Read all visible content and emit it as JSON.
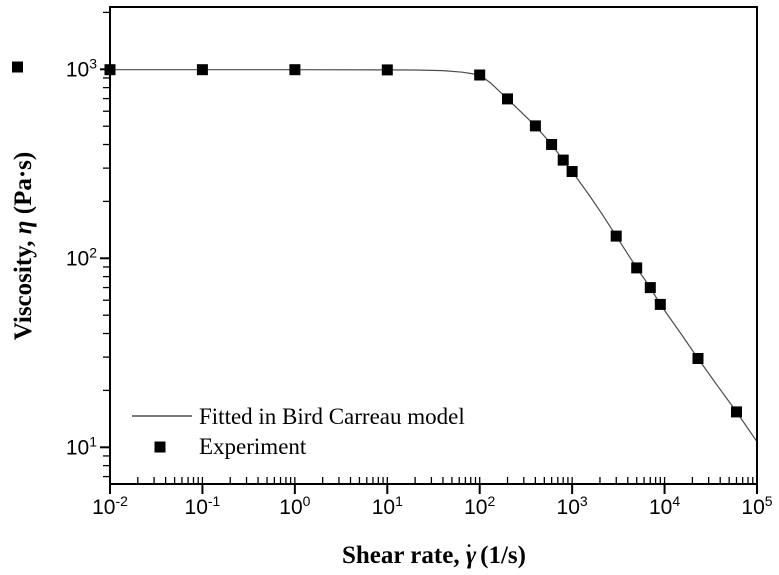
{
  "chart_data": {
    "type": "line",
    "title": "",
    "xlabel": "Shear rate, γ̇ (1/s)",
    "ylabel": "Viscosity, η (Pa·s)",
    "xlabel_parts": [
      {
        "text": "Shear rate, ",
        "style": "plain"
      },
      {
        "text": "γ",
        "style": "italic",
        "dot_above": true
      },
      {
        "text": " (1/s)",
        "style": "plain"
      }
    ],
    "ylabel_parts": [
      {
        "text": "Viscosity, ",
        "style": "plain"
      },
      {
        "text": "η",
        "style": "italic"
      },
      {
        "text": " (Pa·s)",
        "style": "plain"
      }
    ],
    "x_scale": "log",
    "y_scale": "log",
    "xlim": [
      0.01,
      100000
    ],
    "ylim": [
      6.4,
      2130
    ],
    "x_tick_exponents": [
      -2,
      -1,
      0,
      1,
      2,
      3,
      4,
      5
    ],
    "y_tick_exponents": [
      3,
      2,
      1
    ],
    "tick_base": 10,
    "grid": false,
    "legend_position": "inside-bottom-left",
    "legend": [
      {
        "label": "Fitted in Bird Carreau model",
        "marker": "line"
      },
      {
        "label": "Experiment",
        "marker": "square"
      }
    ],
    "colors": {
      "background": "#ffffff",
      "frame": "#000000",
      "curve": "#4d4d4d",
      "marker": "#000000"
    },
    "series": [
      {
        "name": "Fitted in Bird Carreau model",
        "type": "line",
        "points": [
          [
            0.01,
            995
          ],
          [
            0.1,
            995
          ],
          [
            1,
            995
          ],
          [
            10,
            993
          ],
          [
            20,
            991
          ],
          [
            40,
            984
          ],
          [
            65,
            965
          ],
          [
            80,
            950
          ],
          [
            100,
            933
          ],
          [
            130,
            850
          ],
          [
            200,
            697
          ],
          [
            280,
            595
          ],
          [
            400,
            502
          ],
          [
            600,
            400
          ],
          [
            800,
            331
          ],
          [
            1000,
            288
          ],
          [
            1500,
            219
          ],
          [
            2100,
            172
          ],
          [
            3000,
            131
          ],
          [
            5000,
            89
          ],
          [
            7000,
            70
          ],
          [
            9000,
            57
          ],
          [
            15000,
            40
          ],
          [
            23000,
            29.5
          ],
          [
            37000,
            21.3
          ],
          [
            60000,
            15.4
          ],
          [
            100000,
            10.7
          ]
        ]
      },
      {
        "name": "Experiment",
        "type": "scatter",
        "points": [
          [
            0.01,
            995
          ],
          [
            0.1,
            995
          ],
          [
            1,
            995
          ],
          [
            10,
            993
          ],
          [
            100,
            933
          ],
          [
            200,
            697
          ],
          [
            400,
            502
          ],
          [
            600,
            400
          ],
          [
            800,
            331
          ],
          [
            1000,
            288
          ],
          [
            3000,
            131
          ],
          [
            5000,
            89
          ],
          [
            7000,
            70
          ],
          [
            9000,
            57
          ],
          [
            23000,
            29.5
          ],
          [
            60000,
            15.4
          ]
        ]
      }
    ]
  }
}
